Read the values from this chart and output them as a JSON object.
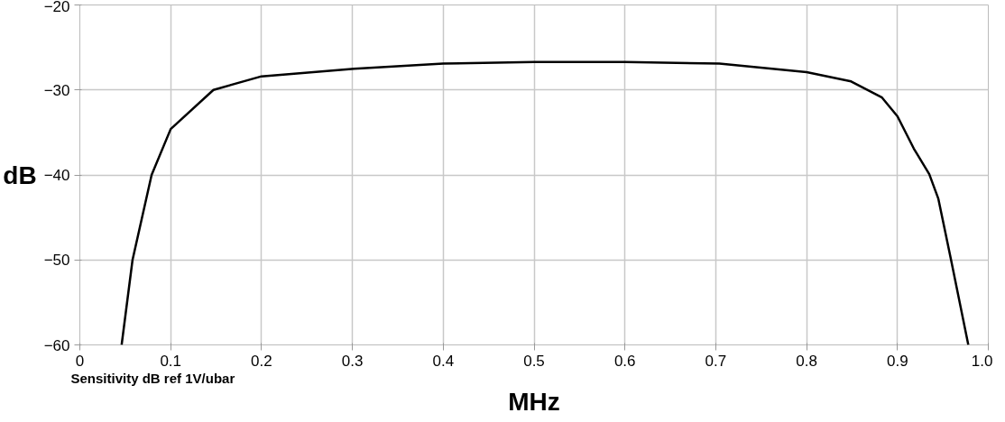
{
  "chart_data": {
    "type": "line",
    "xlabel": "MHz",
    "ylabel": "dB",
    "annotations": [
      "Sensitivity dB ref 1V/ubar"
    ],
    "x": [
      0.046,
      0.058,
      0.079,
      0.1,
      0.147,
      0.2,
      0.302,
      0.4,
      0.5,
      0.6,
      0.704,
      0.8,
      0.849,
      0.883,
      0.9,
      0.918,
      0.935,
      0.945,
      0.959,
      0.978
    ],
    "series": [
      {
        "color": "#000000",
        "values": [
          -60,
          -50,
          -40,
          -34.6,
          -30,
          -28.4,
          -27.5,
          -26.9,
          -26.7,
          -26.7,
          -26.9,
          -27.9,
          -29.0,
          -30.9,
          -33.1,
          -36.9,
          -39.9,
          -42.8,
          -50,
          -60
        ]
      }
    ],
    "xlim": [
      0,
      1.0
    ],
    "ylim": [
      -60,
      -20
    ],
    "xticks": [
      0,
      0.1,
      0.2,
      0.3,
      0.4,
      0.5,
      0.6,
      0.7,
      0.8,
      0.9,
      {
        "value": 1.0,
        "label": "1.0"
      }
    ],
    "yticks": [
      -60,
      -50,
      -40,
      -30,
      -20
    ],
    "grid": true,
    "marker": "none",
    "line_style": "solid"
  }
}
